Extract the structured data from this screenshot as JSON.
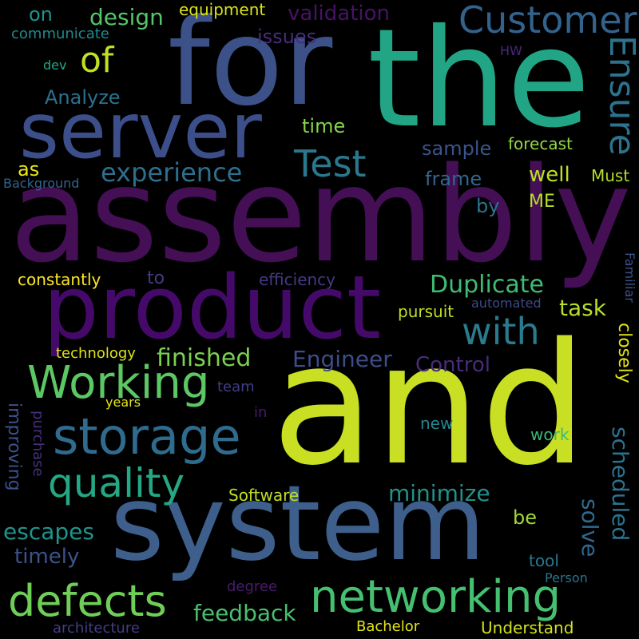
{
  "cloud": {
    "words": [
      {
        "text": "assembly",
        "color": "#440f54"
      },
      {
        "text": "and",
        "color": "#c8df23"
      },
      {
        "text": "the",
        "color": "#21a585"
      },
      {
        "text": "for",
        "color": "#3c5188"
      },
      {
        "text": "product",
        "color": "#450a69"
      },
      {
        "text": "system",
        "color": "#3e5f8b"
      },
      {
        "text": "server",
        "color": "#3c4f8a"
      },
      {
        "text": "storage",
        "color": "#2f6b8e"
      },
      {
        "text": "networking",
        "color": "#45bf70"
      },
      {
        "text": "Customer",
        "color": "#33638d"
      },
      {
        "text": "Working",
        "color": "#5cc863"
      },
      {
        "text": "quality",
        "color": "#25a783"
      },
      {
        "text": "defects",
        "color": "#6ece58"
      },
      {
        "text": "Test",
        "color": "#2a788e"
      },
      {
        "text": "with",
        "color": "#2a7b8e"
      },
      {
        "text": "of",
        "color": "#c2df23"
      },
      {
        "text": "Ensure",
        "color": "#2c738e"
      },
      {
        "text": "experience",
        "color": "#2e6f8e"
      },
      {
        "text": "Duplicate",
        "color": "#3fbc73"
      },
      {
        "text": "finished",
        "color": "#7ad151"
      },
      {
        "text": "Engineer",
        "color": "#3d4d8a"
      },
      {
        "text": "minimize",
        "color": "#20928c"
      },
      {
        "text": "escapes",
        "color": "#20938c"
      },
      {
        "text": "feedback",
        "color": "#48c16e"
      },
      {
        "text": "scheduled",
        "color": "#2c728e"
      },
      {
        "text": "validation",
        "color": "#471365"
      },
      {
        "text": "Control",
        "color": "#472c7a"
      },
      {
        "text": "design",
        "color": "#54c568"
      },
      {
        "text": "solve",
        "color": "#31688e"
      },
      {
        "text": "task",
        "color": "#b5de2b"
      },
      {
        "text": "timely",
        "color": "#3b528b"
      },
      {
        "text": "sample",
        "color": "#3a548c"
      },
      {
        "text": "frame",
        "color": "#31668e"
      },
      {
        "text": "well",
        "color": "#bddf26"
      },
      {
        "text": "time",
        "color": "#84d44b"
      },
      {
        "text": "issues",
        "color": "#472d7b"
      },
      {
        "text": "Analyze",
        "color": "#2c718e"
      },
      {
        "text": "efficiency",
        "color": "#443983"
      },
      {
        "text": "improving",
        "color": "#3b528b"
      },
      {
        "text": "forecast",
        "color": "#93d741"
      },
      {
        "text": "constantly",
        "color": "#fde725"
      },
      {
        "text": "Software",
        "color": "#c0df25"
      },
      {
        "text": "Understand",
        "color": "#d2e21b"
      },
      {
        "text": "closely",
        "color": "#e2e418"
      },
      {
        "text": "equipment",
        "color": "#d8e219"
      },
      {
        "text": "communicate",
        "color": "#23898e"
      },
      {
        "text": "on",
        "color": "#21918c"
      },
      {
        "text": "as",
        "color": "#ece51b"
      },
      {
        "text": "by",
        "color": "#2c728e"
      },
      {
        "text": "ME",
        "color": "#b8de29"
      },
      {
        "text": "Must",
        "color": "#b2dd2d"
      },
      {
        "text": "to",
        "color": "#443a83"
      },
      {
        "text": "pursuit",
        "color": "#c2df23"
      },
      {
        "text": "automated",
        "color": "#3e4989"
      },
      {
        "text": "Familiar",
        "color": "#3b528b"
      },
      {
        "text": "technology",
        "color": "#dde318"
      },
      {
        "text": "team",
        "color": "#433e85"
      },
      {
        "text": "years",
        "color": "#e5e419"
      },
      {
        "text": "in",
        "color": "#48196b"
      },
      {
        "text": "new",
        "color": "#25858e"
      },
      {
        "text": "work",
        "color": "#38b977"
      },
      {
        "text": "purchase",
        "color": "#46307e"
      },
      {
        "text": "be",
        "color": "#a2da37"
      },
      {
        "text": "tool",
        "color": "#2a788e"
      },
      {
        "text": "Person",
        "color": "#2c738e"
      },
      {
        "text": "degree",
        "color": "#481b6d"
      },
      {
        "text": "Bachelor",
        "color": "#e3e418"
      },
      {
        "text": "architecture",
        "color": "#433d84"
      },
      {
        "text": "HW",
        "color": "#482979"
      },
      {
        "text": "dev",
        "color": "#22a884"
      },
      {
        "text": "Background",
        "color": "#33638d"
      }
    ]
  }
}
